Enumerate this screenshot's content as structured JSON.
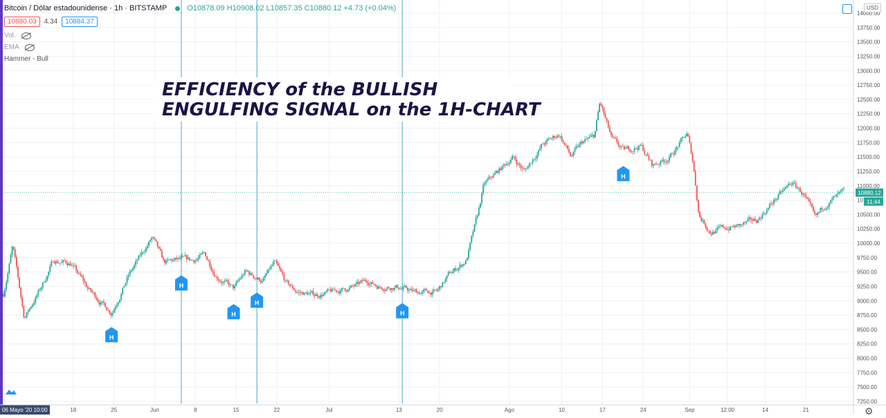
{
  "header": {
    "symbol": "Bitcoin / Dólar estadounidense · 1h · BITSTAMP",
    "ohlc": "O10878.09 H10908.02 L10857.35 C10880.12 +4.73 (+0.04%)"
  },
  "prices": {
    "sell": "10880.03",
    "spread": "4.34",
    "buy": "10884.37"
  },
  "indicators": {
    "vol": "Vol.",
    "ema": "EMA",
    "pattern": "Hammer - Bull"
  },
  "annotation": {
    "line1": "EFFICIENCY of the BULLISH",
    "line2": "ENGULFING SIGNAL on the 1H-CHART"
  },
  "currency": "USD",
  "last_price_label": "10880.12",
  "countdown_label": "11:44",
  "colors": {
    "up": "#26a69a",
    "down": "#ef5350",
    "signal": "#2196f3",
    "marker_line": "#4aa3cf",
    "text": "#131722",
    "annotation": "#1a1446"
  },
  "chart_data": {
    "type": "candlestick",
    "title": "",
    "xlabel": "",
    "ylabel": "",
    "ylim": [
      7250,
      14000
    ],
    "yticks": [
      "7250.00",
      "7500.00",
      "7750.00",
      "8000.00",
      "8250.00",
      "8500.00",
      "8750.00",
      "9000.00",
      "9250.00",
      "9500.00",
      "9750.00",
      "10000.00",
      "10250.00",
      "10500.00",
      "10750.00",
      "11000.00",
      "11250.00",
      "11500.00",
      "11750.00",
      "12000.00",
      "12250.00",
      "12500.00",
      "12750.00",
      "13000.00",
      "13250.00",
      "13500.00",
      "13750.00",
      "14000.00"
    ],
    "xticks": [
      "06 Mayo '20 10:00",
      "18",
      "25",
      "Jun",
      "8",
      "15",
      "22",
      "Jul",
      "13",
      "20",
      "Ago",
      "10",
      "17",
      "24",
      "Sep",
      "12:00",
      "14",
      "21"
    ],
    "grid": true,
    "last_price": 10880.12,
    "price_path": [
      {
        "date": "2020-05-06",
        "price": 8900
      },
      {
        "date": "2020-05-08",
        "price": 9950
      },
      {
        "date": "2020-05-10",
        "price": 8700
      },
      {
        "date": "2020-05-13",
        "price": 9250
      },
      {
        "date": "2020-05-15",
        "price": 9700
      },
      {
        "date": "2020-05-18",
        "price": 9650
      },
      {
        "date": "2020-05-21",
        "price": 9200
      },
      {
        "date": "2020-05-25",
        "price": 8800
      },
      {
        "date": "2020-05-28",
        "price": 9450
      },
      {
        "date": "2020-06-01",
        "price": 10100
      },
      {
        "date": "2020-06-03",
        "price": 9650
      },
      {
        "date": "2020-06-05",
        "price": 9700
      },
      {
        "date": "2020-06-08",
        "price": 9700
      },
      {
        "date": "2020-06-10",
        "price": 9800
      },
      {
        "date": "2020-06-12",
        "price": 9450
      },
      {
        "date": "2020-06-15",
        "price": 9200
      },
      {
        "date": "2020-06-17",
        "price": 9500
      },
      {
        "date": "2020-06-20",
        "price": 9350
      },
      {
        "date": "2020-06-22",
        "price": 9650
      },
      {
        "date": "2020-06-24",
        "price": 9300
      },
      {
        "date": "2020-06-26",
        "price": 9150
      },
      {
        "date": "2020-06-29",
        "price": 9100
      },
      {
        "date": "2020-07-02",
        "price": 9150
      },
      {
        "date": "2020-07-06",
        "price": 9250
      },
      {
        "date": "2020-07-08",
        "price": 9350
      },
      {
        "date": "2020-07-10",
        "price": 9250
      },
      {
        "date": "2020-07-13",
        "price": 9250
      },
      {
        "date": "2020-07-16",
        "price": 9150
      },
      {
        "date": "2020-07-20",
        "price": 9150
      },
      {
        "date": "2020-07-22",
        "price": 9450
      },
      {
        "date": "2020-07-25",
        "price": 9700
      },
      {
        "date": "2020-07-27",
        "price": 10500
      },
      {
        "date": "2020-07-28",
        "price": 11000
      },
      {
        "date": "2020-07-31",
        "price": 11300
      },
      {
        "date": "2020-08-02",
        "price": 11500
      },
      {
        "date": "2020-08-04",
        "price": 11250
      },
      {
        "date": "2020-08-07",
        "price": 11700
      },
      {
        "date": "2020-08-10",
        "price": 11900
      },
      {
        "date": "2020-08-12",
        "price": 11500
      },
      {
        "date": "2020-08-14",
        "price": 11750
      },
      {
        "date": "2020-08-16",
        "price": 11850
      },
      {
        "date": "2020-08-17",
        "price": 12450
      },
      {
        "date": "2020-08-19",
        "price": 11800
      },
      {
        "date": "2020-08-21",
        "price": 11600
      },
      {
        "date": "2020-08-24",
        "price": 11700
      },
      {
        "date": "2020-08-26",
        "price": 11350
      },
      {
        "date": "2020-08-29",
        "price": 11500
      },
      {
        "date": "2020-09-01",
        "price": 11900
      },
      {
        "date": "2020-09-02",
        "price": 11400
      },
      {
        "date": "2020-09-03",
        "price": 10500
      },
      {
        "date": "2020-09-05",
        "price": 10200
      },
      {
        "date": "2020-09-07",
        "price": 10250
      },
      {
        "date": "2020-09-10",
        "price": 10300
      },
      {
        "date": "2020-09-13",
        "price": 10400
      },
      {
        "date": "2020-09-16",
        "price": 10750
      },
      {
        "date": "2020-09-19",
        "price": 11050
      },
      {
        "date": "2020-09-21",
        "price": 10850
      },
      {
        "date": "2020-09-23",
        "price": 10400
      },
      {
        "date": "2020-09-25",
        "price": 10700
      },
      {
        "date": "2020-09-28",
        "price": 10880
      }
    ],
    "signal_labels": [
      {
        "date": "2020-05-25",
        "label": "H"
      },
      {
        "date": "2020-06-06",
        "label": "H"
      },
      {
        "date": "2020-06-15",
        "label": "H"
      },
      {
        "date": "2020-06-19",
        "label": "H"
      },
      {
        "date": "2020-07-14",
        "label": "H"
      },
      {
        "date": "2020-08-21",
        "label": "H"
      }
    ],
    "vertical_markers": [
      "2020-06-06",
      "2020-06-19",
      "2020-07-14"
    ]
  }
}
